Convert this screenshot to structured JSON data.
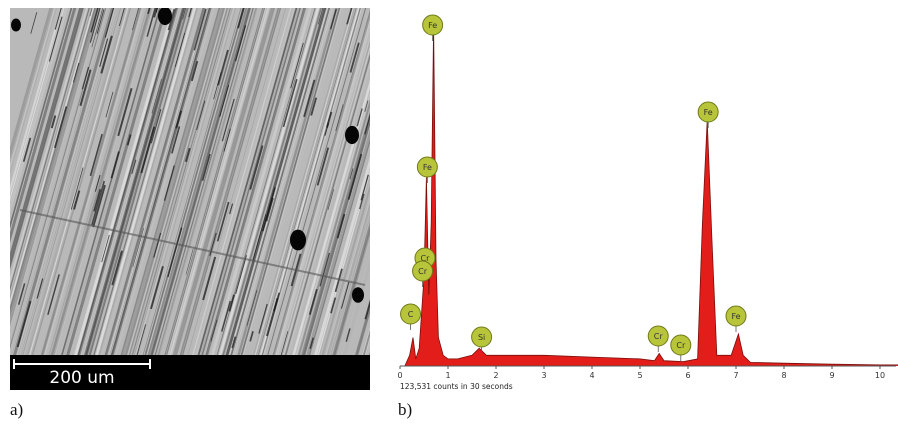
{
  "panel_labels": [
    "a)",
    "b)"
  ],
  "scale_bar": "200 um",
  "chart_data": {
    "type": "area",
    "color": "#e31e1a",
    "note": "123,531 counts in 30 seconds",
    "x": [
      0,
      0.1,
      0.2,
      0.27,
      0.33,
      0.4,
      0.5,
      0.55,
      0.6,
      0.65,
      0.7,
      0.75,
      0.8,
      0.9,
      1.0,
      1.2,
      1.5,
      1.65,
      1.8,
      2.5,
      3,
      4,
      5,
      5.3,
      5.4,
      5.5,
      5.9,
      6.2,
      6.3,
      6.4,
      6.5,
      6.6,
      6.9,
      7.05,
      7.15,
      7.3,
      8,
      9,
      10,
      10.4
    ],
    "values": [
      0,
      0,
      3,
      8,
      2,
      5,
      25,
      53,
      20,
      40,
      96,
      30,
      8,
      3,
      2,
      2,
      3,
      5,
      3,
      3,
      3,
      2.5,
      2,
      1.5,
      3.5,
      1.5,
      1.2,
      2,
      40,
      69,
      35,
      3,
      3,
      9,
      3,
      1,
      0.8,
      0.5,
      0.3,
      0.3
    ],
    "xlim": [
      0,
      10.4
    ],
    "ylim": [
      0,
      100
    ],
    "xticks": [
      0,
      1,
      2,
      3,
      4,
      5,
      6,
      7,
      8,
      9,
      10
    ],
    "annotations": [
      {
        "text": "Fe",
        "x": 0.68
      },
      {
        "text": "Fe",
        "x": 0.57
      },
      {
        "text": "Cr",
        "x": 0.52
      },
      {
        "text": "Cr",
        "x": 0.47
      },
      {
        "text": "C",
        "x": 0.22
      },
      {
        "text": "Si",
        "x": 1.7
      },
      {
        "text": "Cr",
        "x": 5.38
      },
      {
        "text": "Cr",
        "x": 5.85
      },
      {
        "text": "Fe",
        "x": 6.42
      },
      {
        "text": "Fe",
        "x": 7.0
      }
    ]
  }
}
